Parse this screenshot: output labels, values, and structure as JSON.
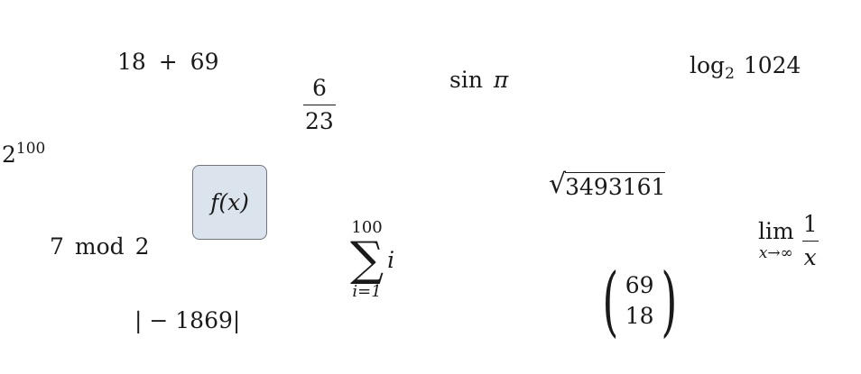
{
  "expressions": {
    "sum_add": {
      "left": "18",
      "op": "+",
      "right": "69"
    },
    "fraction": {
      "numerator": "6",
      "denominator": "23"
    },
    "sine": {
      "func": "sin",
      "arg": "π"
    },
    "log": {
      "func": "log",
      "base": "2",
      "arg": "1024"
    },
    "power": {
      "base": "2",
      "exponent": "100"
    },
    "sqrt": {
      "radicand": "3493161"
    },
    "function_button": {
      "label": "f(x)"
    },
    "mod": {
      "left": "7",
      "op": "mod",
      "right": "2"
    },
    "summation": {
      "upper": "100",
      "symbol": "∑",
      "term": "i",
      "lower": "i=1"
    },
    "limit": {
      "op": "lim",
      "sub": "x→∞",
      "numerator": "1",
      "denominator": "x"
    },
    "binomial": {
      "top": "69",
      "bottom": "18"
    },
    "absolute": {
      "text": "| − 1869|"
    }
  },
  "colors": {
    "box_fill": "#dbe3ec",
    "box_border": "#6f7680",
    "text": "#1a1a1a"
  }
}
